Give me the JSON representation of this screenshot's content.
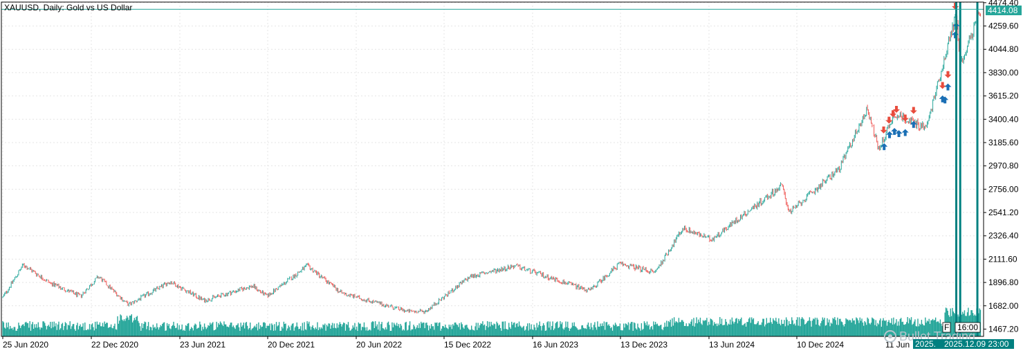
{
  "chart_data": {
    "type": "candlestick",
    "title": "XAUUSD, Daily:  Gold vs US Dollar",
    "x_ticks": [
      "25 Jun 2020",
      "22 Dec 2020",
      "23 Jun 2021",
      "20 Dec 2021",
      "20 Jun 2022",
      "15 Dec 2022",
      "16 Jun 2023",
      "13 Dec 2023",
      "13 Jun 2024",
      "10 Dec 2024",
      "11 Jun"
    ],
    "y_ticks": [
      "4474.40",
      "4259.60",
      "4044.80",
      "3830.00",
      "3615.20",
      "3400.40",
      "3185.60",
      "2970.80",
      "2756.00",
      "2541.20",
      "2326.40",
      "2111.60",
      "1896.80",
      "1682.00",
      "1467.20"
    ],
    "ylim": [
      1400,
      4480
    ],
    "current_price": "4414.08",
    "time_label_left": "2025.",
    "time_label_right": "2025.12.09 23:00",
    "small_label_1": "F",
    "small_label_2": "16:00",
    "watermark": "Bullet Trading",
    "price_path": [
      {
        "date": "2020-06-25",
        "close": 1760
      },
      {
        "date": "2020-08-06",
        "close": 2060
      },
      {
        "date": "2020-09-30",
        "close": 1890
      },
      {
        "date": "2020-11-30",
        "close": 1770
      },
      {
        "date": "2021-01-06",
        "close": 1950
      },
      {
        "date": "2021-03-08",
        "close": 1690
      },
      {
        "date": "2021-06-01",
        "close": 1905
      },
      {
        "date": "2021-08-09",
        "close": 1730
      },
      {
        "date": "2021-11-16",
        "close": 1865
      },
      {
        "date": "2021-12-15",
        "close": 1770
      },
      {
        "date": "2022-03-08",
        "close": 2050
      },
      {
        "date": "2022-05-16",
        "close": 1800
      },
      {
        "date": "2022-09-28",
        "close": 1630
      },
      {
        "date": "2022-11-03",
        "close": 1630
      },
      {
        "date": "2023-02-02",
        "close": 1950
      },
      {
        "date": "2023-05-04",
        "close": 2050
      },
      {
        "date": "2023-10-04",
        "close": 1820
      },
      {
        "date": "2023-12-04",
        "close": 2070
      },
      {
        "date": "2024-02-14",
        "close": 1990
      },
      {
        "date": "2024-04-12",
        "close": 2400
      },
      {
        "date": "2024-06-07",
        "close": 2290
      },
      {
        "date": "2024-10-30",
        "close": 2790
      },
      {
        "date": "2024-11-14",
        "close": 2540
      },
      {
        "date": "2025-02-24",
        "close": 2950
      },
      {
        "date": "2025-04-22",
        "close": 3500
      },
      {
        "date": "2025-05-15",
        "close": 3120
      },
      {
        "date": "2025-06-16",
        "close": 3450
      },
      {
        "date": "2025-08-20",
        "close": 3320
      },
      {
        "date": "2025-10-20",
        "close": 4380
      },
      {
        "date": "2025-10-28",
        "close": 3900
      },
      {
        "date": "2025-12-09",
        "close": 4414
      }
    ],
    "buy_signals": [
      {
        "date": "2025-05-26",
        "price": 3180
      },
      {
        "date": "2025-06-06",
        "price": 3290
      },
      {
        "date": "2025-06-16",
        "price": 3320
      },
      {
        "date": "2025-06-25",
        "price": 3300
      },
      {
        "date": "2025-07-08",
        "price": 3310
      },
      {
        "date": "2025-07-25",
        "price": 3385
      },
      {
        "date": "2025-09-22",
        "price": 3620
      },
      {
        "date": "2025-09-27",
        "price": 3610
      },
      {
        "date": "2025-10-03",
        "price": 3730
      },
      {
        "date": "2025-10-18",
        "price": 4210
      },
      {
        "date": "2025-10-20",
        "price": 4290
      }
    ],
    "sell_signals": [
      {
        "date": "2025-05-25",
        "price": 3270
      },
      {
        "date": "2025-06-05",
        "price": 3360
      },
      {
        "date": "2025-06-13",
        "price": 3420
      },
      {
        "date": "2025-06-20",
        "price": 3460
      },
      {
        "date": "2025-07-08",
        "price": 3380
      },
      {
        "date": "2025-07-25",
        "price": 3450
      },
      {
        "date": "2025-09-22",
        "price": 3680
      },
      {
        "date": "2025-10-03",
        "price": 3780
      },
      {
        "date": "2025-10-18",
        "price": 4410
      }
    ],
    "vertical_lines": [
      "2025-10-20",
      "2025-10-28",
      "2025-12-02"
    ],
    "colors": {
      "up": "#26a69a",
      "down": "#ef5350",
      "volume": "#26a69a",
      "buy": "#1a6fb5",
      "sell": "#e84c3d",
      "marker_line": "#008080",
      "axis": "#000000",
      "grid": "#e4e4e4"
    }
  }
}
